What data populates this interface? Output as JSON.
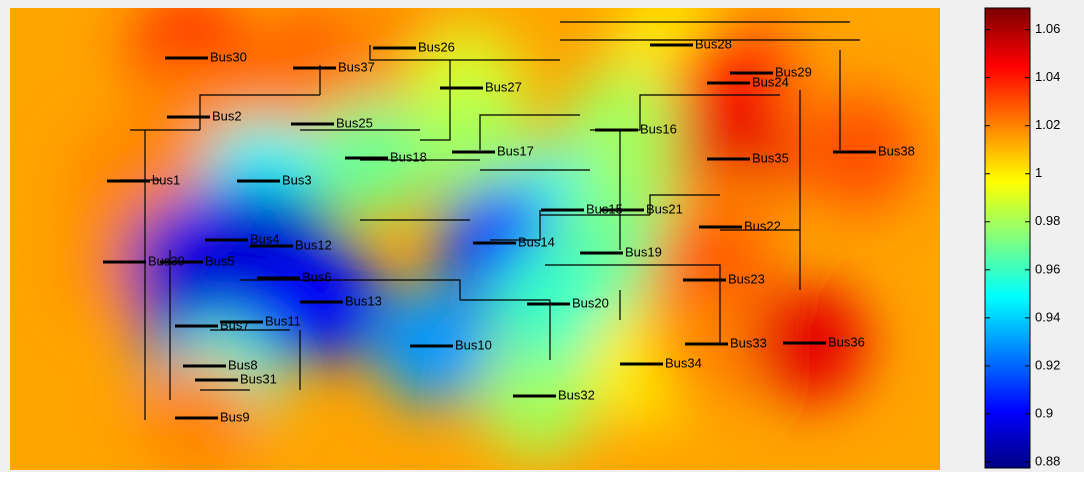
{
  "chart_data": {
    "type": "heatmap",
    "buses": [
      {
        "name": "Bus30",
        "value": 1.04
      },
      {
        "name": "Bus37",
        "value": 1.03
      },
      {
        "name": "Bus26",
        "value": 1.02
      },
      {
        "name": "Bus28",
        "value": 1.0
      },
      {
        "name": "Bus29",
        "value": 1.02
      },
      {
        "name": "Bus27",
        "value": 0.99
      },
      {
        "name": "Bus24",
        "value": 1.04
      },
      {
        "name": "Bus2",
        "value": 1.02
      },
      {
        "name": "Bus25",
        "value": 1.02
      },
      {
        "name": "Bus16",
        "value": 0.98
      },
      {
        "name": "Bus38",
        "value": 1.03
      },
      {
        "name": "bus1",
        "value": 1.02
      },
      {
        "name": "Bus18",
        "value": 0.97
      },
      {
        "name": "Bus17",
        "value": 0.98
      },
      {
        "name": "Bus35",
        "value": 1.05
      },
      {
        "name": "Bus3",
        "value": 0.95
      },
      {
        "name": "Bus15",
        "value": 0.95
      },
      {
        "name": "Bus21",
        "value": 0.98
      },
      {
        "name": "Bus22",
        "value": 1.02
      },
      {
        "name": "Bus14",
        "value": 0.91
      },
      {
        "name": "Bus19",
        "value": 0.97
      },
      {
        "name": "Bus23",
        "value": 1.03
      },
      {
        "name": "Bus39",
        "value": 1.02
      },
      {
        "name": "Bus5",
        "value": 0.89
      },
      {
        "name": "Bus4",
        "value": 0.9
      },
      {
        "name": "Bus12",
        "value": 0.89
      },
      {
        "name": "Bus6",
        "value": 0.89
      },
      {
        "name": "Bus13",
        "value": 0.9
      },
      {
        "name": "Bus11",
        "value": 0.9
      },
      {
        "name": "Bus7",
        "value": 0.89
      },
      {
        "name": "Bus8",
        "value": 0.9
      },
      {
        "name": "Bus31",
        "value": 0.96
      },
      {
        "name": "Bus9",
        "value": 1.02
      },
      {
        "name": "Bus10",
        "value": 0.93
      },
      {
        "name": "Bus32",
        "value": 0.98
      },
      {
        "name": "Bus20",
        "value": 0.96
      },
      {
        "name": "Bus34",
        "value": 1.0
      },
      {
        "name": "Bus33",
        "value": 1.02
      },
      {
        "name": "Bus36",
        "value": 1.05
      }
    ],
    "clim": [
      0.8775,
      1.069
    ],
    "cticks": [
      0.88,
      0.9,
      0.92,
      0.94,
      0.96,
      0.98,
      1,
      1.02,
      1.04,
      1.06
    ]
  }
}
